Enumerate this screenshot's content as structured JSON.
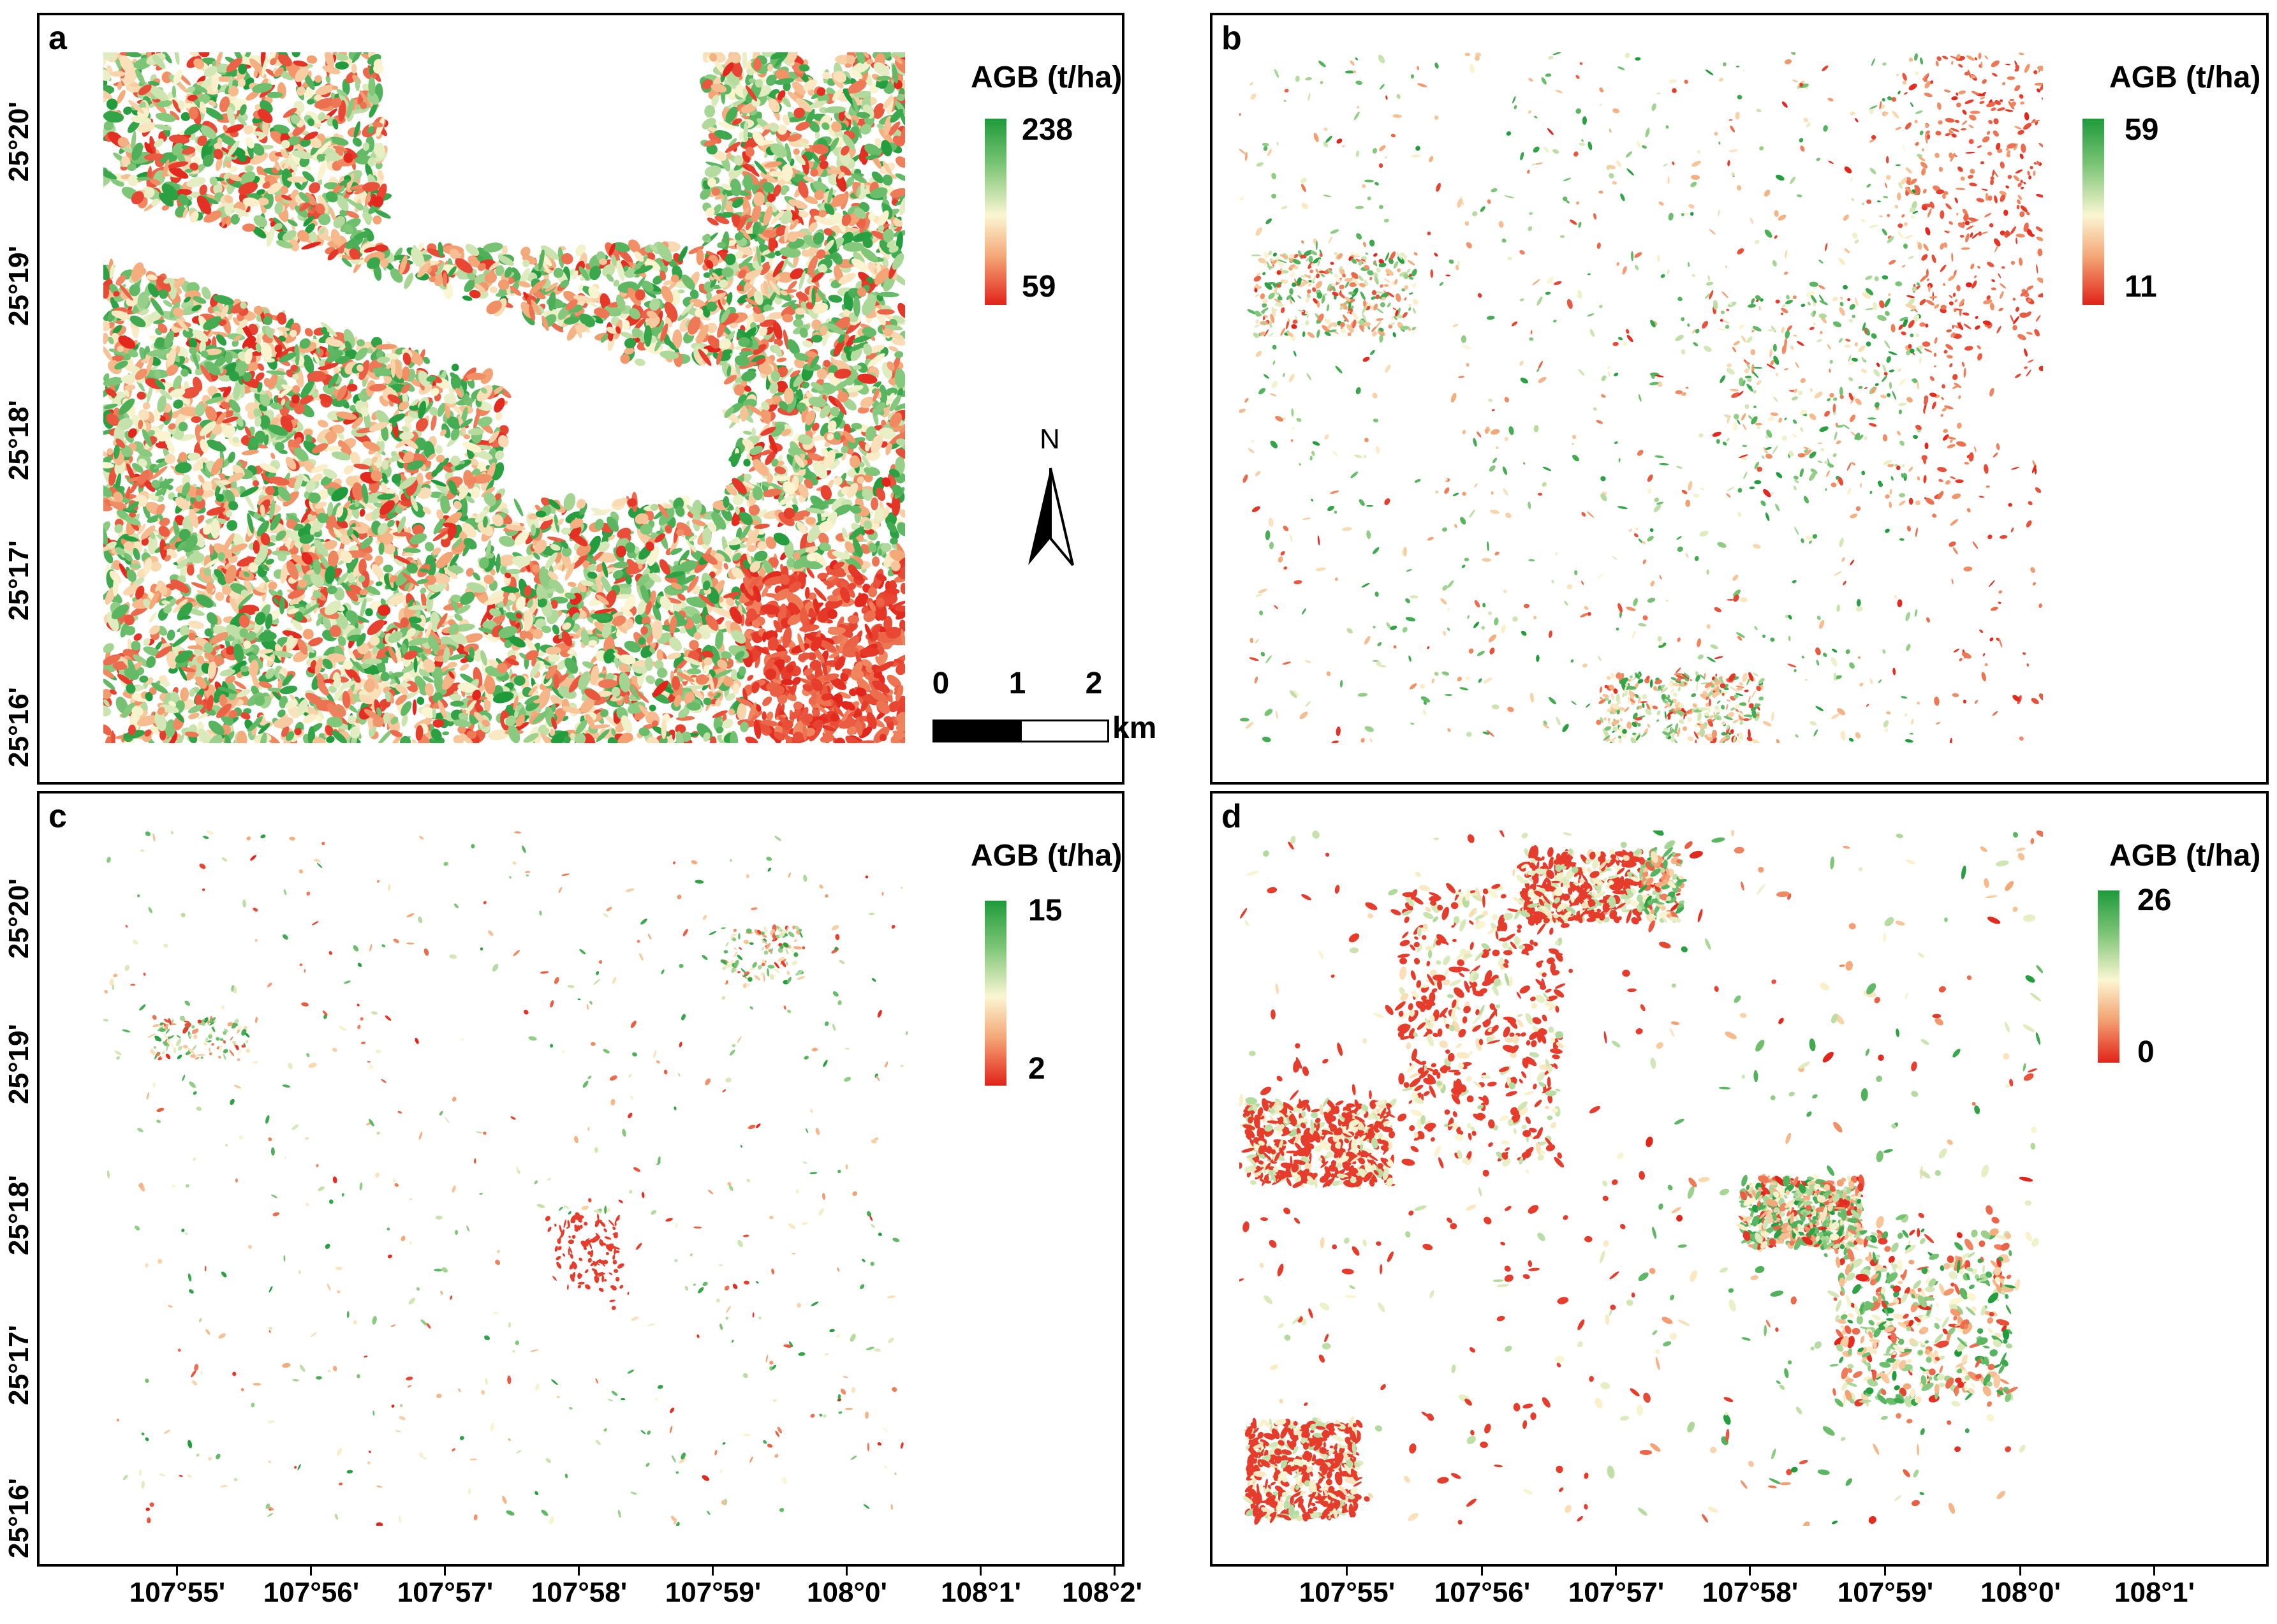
{
  "panels": [
    {
      "letter": "a",
      "legend_title": "AGB (t/ha)",
      "legend_max": "238",
      "legend_min": "59"
    },
    {
      "letter": "b",
      "legend_title": "AGB (t/ha)",
      "legend_max": "59",
      "legend_min": "11"
    },
    {
      "letter": "c",
      "legend_title": "AGB (t/ha)",
      "legend_max": "15",
      "legend_min": "2"
    },
    {
      "letter": "d",
      "legend_title": "AGB (t/ha)",
      "legend_max": "26",
      "legend_min": "0"
    }
  ],
  "latitude_labels": [
    "25°20'",
    "25°19'",
    "25°18'",
    "25°17'",
    "25°16'"
  ],
  "longitude_labels_left": [
    "107°55'",
    "107°56'",
    "107°57'",
    "107°58'",
    "107°59'",
    "108°0'",
    "108°1'",
    "108°2'"
  ],
  "longitude_labels_right": [
    "107°55'",
    "107°56'",
    "107°57'",
    "107°58'",
    "107°59'",
    "108°0'",
    "108°1'"
  ],
  "north_arrow": {
    "label": "N"
  },
  "scale_bar": {
    "labels": [
      "0",
      "1",
      "2"
    ],
    "unit": "km"
  },
  "colors": {
    "high": "#1e9a3a",
    "mid": "#fbf6d2",
    "low": "#e2231a"
  }
}
